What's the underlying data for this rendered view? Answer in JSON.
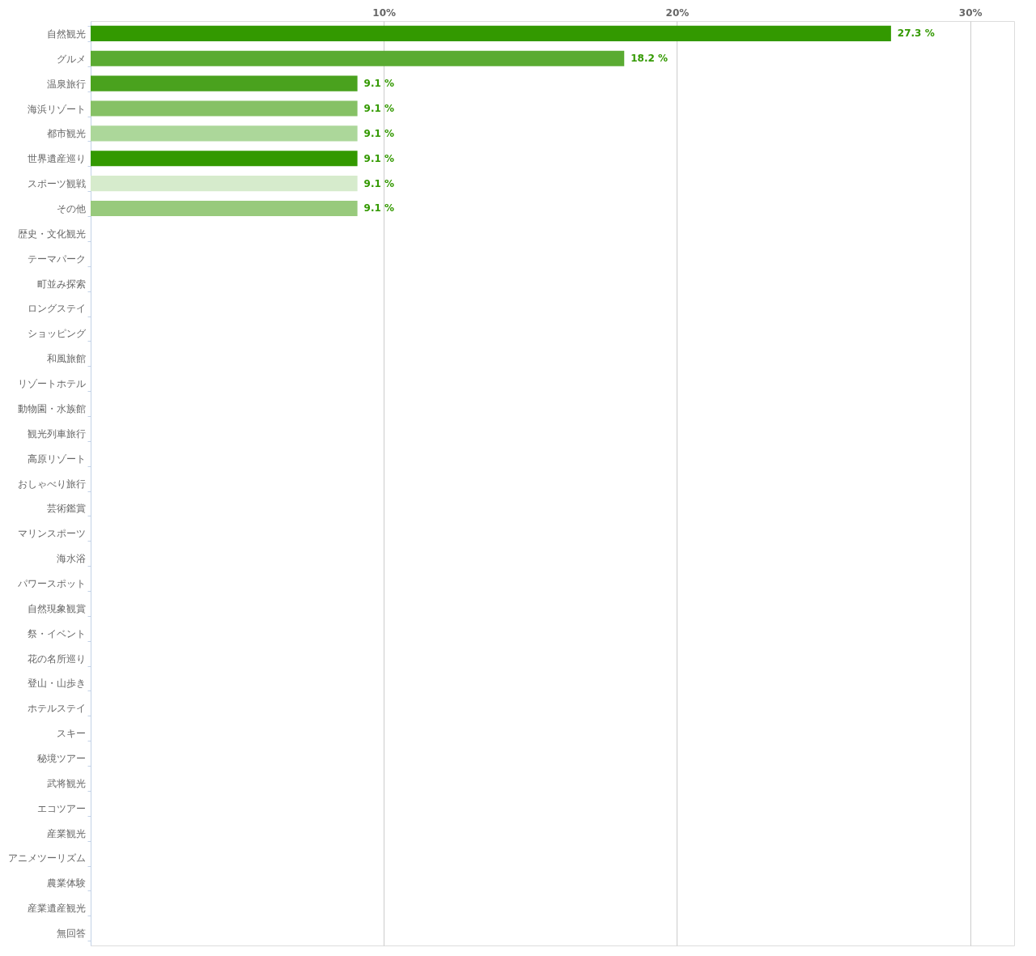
{
  "chart_data": {
    "type": "bar",
    "orientation": "horizontal",
    "categories": [
      "自然観光",
      "グルメ",
      "温泉旅行",
      "海浜リゾート",
      "都市観光",
      "世界遺産巡り",
      "スポーツ観戦",
      "その他",
      "歴史・文化観光",
      "テーマパーク",
      "町並み探索",
      "ロングステイ",
      "ショッピング",
      "和風旅館",
      "リゾートホテル",
      "動物園・水族館",
      "観光列車旅行",
      "高原リゾート",
      "おしゃべり旅行",
      "芸術鑑賞",
      "マリンスポーツ",
      "海水浴",
      "パワースポット",
      "自然現象観賞",
      "祭・イベント",
      "花の名所巡り",
      "登山・山歩き",
      "ホテルステイ",
      "スキー",
      "秘境ツアー",
      "武将観光",
      "エコツアー",
      "産業観光",
      "アニメツーリズム",
      "農業体験",
      "産業遺産観光",
      "無回答"
    ],
    "values": [
      27.3,
      18.2,
      9.1,
      9.1,
      9.1,
      9.1,
      9.1,
      9.1,
      0,
      0,
      0,
      0,
      0,
      0,
      0,
      0,
      0,
      0,
      0,
      0,
      0,
      0,
      0,
      0,
      0,
      0,
      0,
      0,
      0,
      0,
      0,
      0,
      0,
      0,
      0,
      0,
      0
    ],
    "colors": [
      "#339900",
      "#5aab32",
      "#4aa21e",
      "#86c165",
      "#acd79a",
      "#339900",
      "#d6ebcc",
      "#98ca7c",
      null,
      null,
      null,
      null,
      null,
      null,
      null,
      null,
      null,
      null,
      null,
      null,
      null,
      null,
      null,
      null,
      null,
      null,
      null,
      null,
      null,
      null,
      null,
      null,
      null,
      null,
      null,
      null,
      null
    ],
    "value_labels": [
      "27.3 %",
      "18.2 %",
      "9.1 %",
      "9.1 %",
      "9.1 %",
      "9.1 %",
      "9.1 %",
      "9.1 %",
      null,
      null,
      null,
      null,
      null,
      null,
      null,
      null,
      null,
      null,
      null,
      null,
      null,
      null,
      null,
      null,
      null,
      null,
      null,
      null,
      null,
      null,
      null,
      null,
      null,
      null,
      null,
      null,
      null
    ],
    "xlim": [
      0,
      31.5
    ],
    "xticks": [
      {
        "value": 10,
        "label": "10%"
      },
      {
        "value": 20,
        "label": "20%"
      },
      {
        "value": 30,
        "label": "30%"
      }
    ],
    "grid": "x"
  }
}
